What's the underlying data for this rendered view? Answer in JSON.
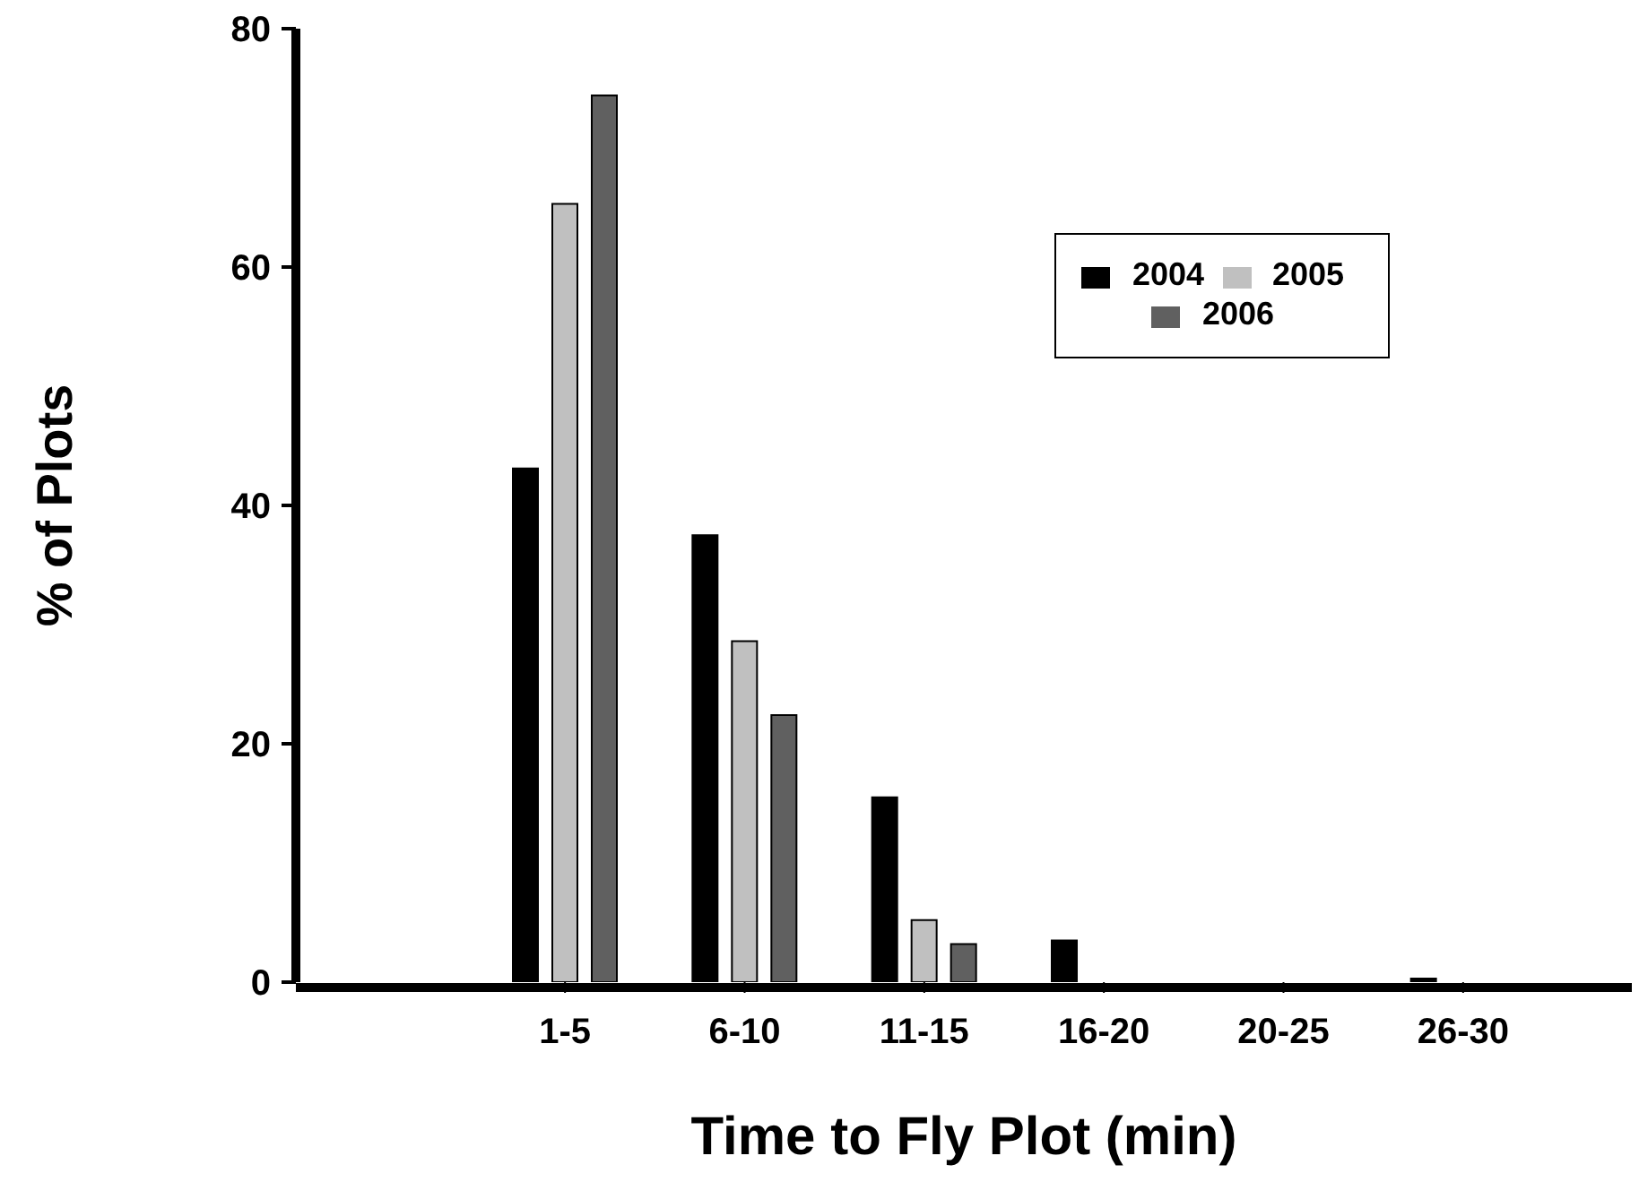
{
  "chart_data": {
    "type": "bar",
    "xlabel": "Time to Fly Plot (min)",
    "ylabel": "% of Plots",
    "categories": [
      "1-5",
      "6-10",
      "11-15",
      "16-20",
      "20-25",
      "26-30"
    ],
    "series": [
      {
        "name": "2004",
        "color": "#000000",
        "values": [
          43.1,
          37.5,
          15.5,
          3.5,
          0,
          0.3
        ]
      },
      {
        "name": "2005",
        "color": "#c0c0c0",
        "values": [
          65.3,
          28.6,
          5.2,
          0,
          0,
          0
        ]
      },
      {
        "name": "2006",
        "color": "#606060",
        "values": [
          74.4,
          22.4,
          3.2,
          0,
          0,
          0
        ]
      }
    ],
    "ylim": [
      0,
      80
    ],
    "yticks": [
      0,
      20,
      40,
      60,
      80
    ],
    "grid": false,
    "legend": "top right"
  }
}
